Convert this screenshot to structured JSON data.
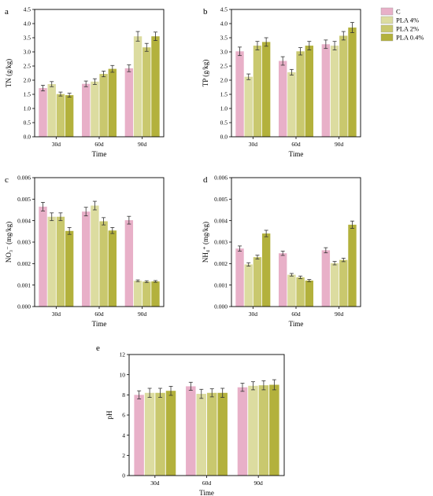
{
  "colors": {
    "C": "#e8b0c8",
    "PLA 4%": "#dcdca0",
    "PLA 2%": "#c9c86e",
    "PLA 0.4%": "#b3b13c",
    "axis": "#000000",
    "error_bar": "#333333"
  },
  "legend": {
    "placement": "right of panel b",
    "entries": [
      "C",
      "PLA 4%",
      "PLA 2%",
      "PLA 0.4%"
    ]
  },
  "chart_data": [
    {
      "panel": "a",
      "type": "bar",
      "xlabel": "Time",
      "ylabel": "TN (g/kg)",
      "categories": [
        "30d",
        "60d",
        "90d"
      ],
      "ylim": [
        0,
        4.5
      ],
      "yticks": [
        "0.0",
        "0.5",
        "1.0",
        "1.5",
        "2.0",
        "2.5",
        "3.0",
        "3.5",
        "4.0",
        "4.5"
      ],
      "series": [
        {
          "name": "C",
          "values": [
            1.72,
            1.87,
            2.42
          ],
          "errors": [
            0.1,
            0.1,
            0.12
          ]
        },
        {
          "name": "PLA 4%",
          "values": [
            1.86,
            1.95,
            3.55
          ],
          "errors": [
            0.09,
            0.1,
            0.17
          ]
        },
        {
          "name": "PLA 2%",
          "values": [
            1.51,
            2.22,
            3.16
          ],
          "errors": [
            0.07,
            0.1,
            0.14
          ]
        },
        {
          "name": "PLA 0.4%",
          "values": [
            1.47,
            2.4,
            3.55
          ],
          "errors": [
            0.07,
            0.12,
            0.15
          ]
        }
      ]
    },
    {
      "panel": "b",
      "type": "bar",
      "xlabel": "Time",
      "ylabel": "TP (g/kg)",
      "categories": [
        "30d",
        "60d",
        "90d"
      ],
      "ylim": [
        0,
        4.5
      ],
      "yticks": [
        "0.0",
        "0.5",
        "1.0",
        "1.5",
        "2.0",
        "2.5",
        "3.0",
        "3.5",
        "4.0",
        "4.5"
      ],
      "series": [
        {
          "name": "C",
          "values": [
            3.02,
            2.68,
            3.27
          ],
          "errors": [
            0.15,
            0.15,
            0.15
          ]
        },
        {
          "name": "PLA 4%",
          "values": [
            2.12,
            2.28,
            3.22
          ],
          "errors": [
            0.1,
            0.1,
            0.15
          ]
        },
        {
          "name": "PLA 2%",
          "values": [
            3.22,
            3.02,
            3.57
          ],
          "errors": [
            0.15,
            0.13,
            0.15
          ]
        },
        {
          "name": "PLA 0.4%",
          "values": [
            3.35,
            3.22,
            3.86
          ],
          "errors": [
            0.15,
            0.15,
            0.18
          ]
        }
      ]
    },
    {
      "panel": "c",
      "type": "bar",
      "xlabel": "Time",
      "ylabel": "NO₃⁻ (mg/kg)",
      "categories": [
        "30d",
        "60d",
        "90d"
      ],
      "ylim": [
        0,
        0.006
      ],
      "yticks": [
        "0.000",
        "0.001",
        "0.002",
        "0.003",
        "0.004",
        "0.005",
        "0.006"
      ],
      "series": [
        {
          "name": "C",
          "values": [
            0.00465,
            0.00442,
            0.00402
          ],
          "errors": [
            0.0002,
            0.0002,
            0.00018
          ]
        },
        {
          "name": "PLA 4%",
          "values": [
            0.00418,
            0.0047,
            0.0012
          ],
          "errors": [
            0.00018,
            0.0002,
            4e-05
          ]
        },
        {
          "name": "PLA 2%",
          "values": [
            0.00418,
            0.00397,
            0.00116
          ],
          "errors": [
            0.00018,
            0.00017,
            4e-05
          ]
        },
        {
          "name": "PLA 0.4%",
          "values": [
            0.00352,
            0.00354,
            0.00117
          ],
          "errors": [
            0.00016,
            0.00014,
            4e-05
          ]
        }
      ]
    },
    {
      "panel": "d",
      "type": "bar",
      "xlabel": "Time",
      "ylabel": "NH₄⁺ (mg/kg)",
      "categories": [
        "30d",
        "60d",
        "90d"
      ],
      "ylim": [
        0,
        0.006
      ],
      "yticks": [
        "0.000",
        "0.001",
        "0.002",
        "0.003",
        "0.004",
        "0.005",
        "0.006"
      ],
      "series": [
        {
          "name": "C",
          "values": [
            0.0027,
            0.00248,
            0.00262
          ],
          "errors": [
            0.00012,
            0.0001,
            0.00012
          ]
        },
        {
          "name": "PLA 4%",
          "values": [
            0.00196,
            0.00148,
            0.00202
          ],
          "errors": [
            8e-05,
            6e-05,
            8e-05
          ]
        },
        {
          "name": "PLA 2%",
          "values": [
            0.0023,
            0.00136,
            0.00217
          ],
          "errors": [
            9e-05,
            6e-05,
            8e-05
          ]
        },
        {
          "name": "PLA 0.4%",
          "values": [
            0.0034,
            0.00121,
            0.00381
          ],
          "errors": [
            0.00015,
            5e-05,
            0.00017
          ]
        }
      ]
    },
    {
      "panel": "e",
      "type": "bar",
      "xlabel": "Time",
      "ylabel": "pH",
      "categories": [
        "30d",
        "60d",
        "90d"
      ],
      "ylim": [
        0,
        12
      ],
      "yticks": [
        "0",
        "2",
        "4",
        "6",
        "8",
        "10",
        "12"
      ],
      "series": [
        {
          "name": "C",
          "values": [
            8.0,
            8.85,
            8.75
          ],
          "errors": [
            0.4,
            0.4,
            0.4
          ]
        },
        {
          "name": "PLA 4%",
          "values": [
            8.2,
            8.1,
            8.9
          ],
          "errors": [
            0.45,
            0.45,
            0.4
          ]
        },
        {
          "name": "PLA 2%",
          "values": [
            8.2,
            8.2,
            8.95
          ],
          "errors": [
            0.45,
            0.4,
            0.45
          ]
        },
        {
          "name": "PLA 0.4%",
          "values": [
            8.4,
            8.2,
            9.0
          ],
          "errors": [
            0.45,
            0.45,
            0.5
          ]
        }
      ]
    }
  ]
}
